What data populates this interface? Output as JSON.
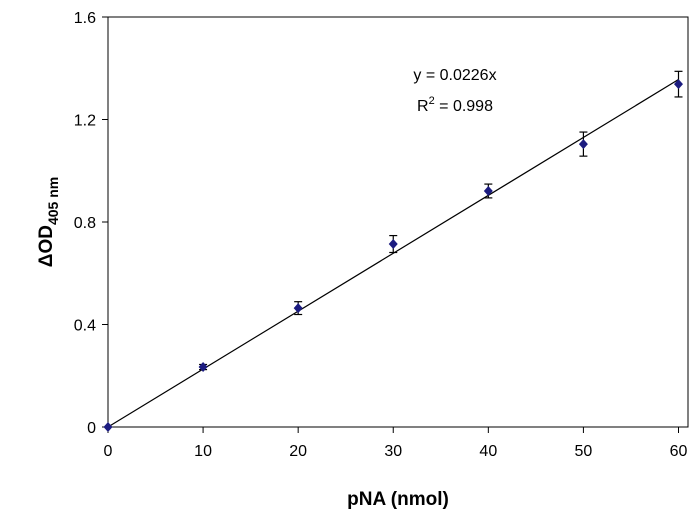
{
  "chart_data": {
    "type": "scatter",
    "xlabel": "pNA (nmol)",
    "ylabel": "ΔOD",
    "ylabel_sub": "405 nm",
    "x": [
      0,
      10,
      20,
      30,
      40,
      50,
      60
    ],
    "series": [
      {
        "color": "#1c1c80",
        "values": [
          0,
          0.234,
          0.464,
          0.714,
          0.921,
          1.104,
          1.338
        ],
        "errors": [
          0,
          0.01,
          0.025,
          0.033,
          0.027,
          0.047,
          0.05
        ]
      }
    ],
    "trendline": {
      "slope": 0.0226,
      "color": "#000000"
    },
    "annotations": {
      "equation": "y = 0.0226x",
      "r2_base": "R",
      "r2_sup": "2",
      "r2_rest": " = 0.998"
    },
    "xlim": [
      0,
      61
    ],
    "ylim": [
      0,
      1.6
    ],
    "xticks": [
      0,
      10,
      20,
      30,
      40,
      50,
      60
    ],
    "yticks": [
      0,
      0.4,
      0.8,
      1.2,
      1.6
    ]
  }
}
